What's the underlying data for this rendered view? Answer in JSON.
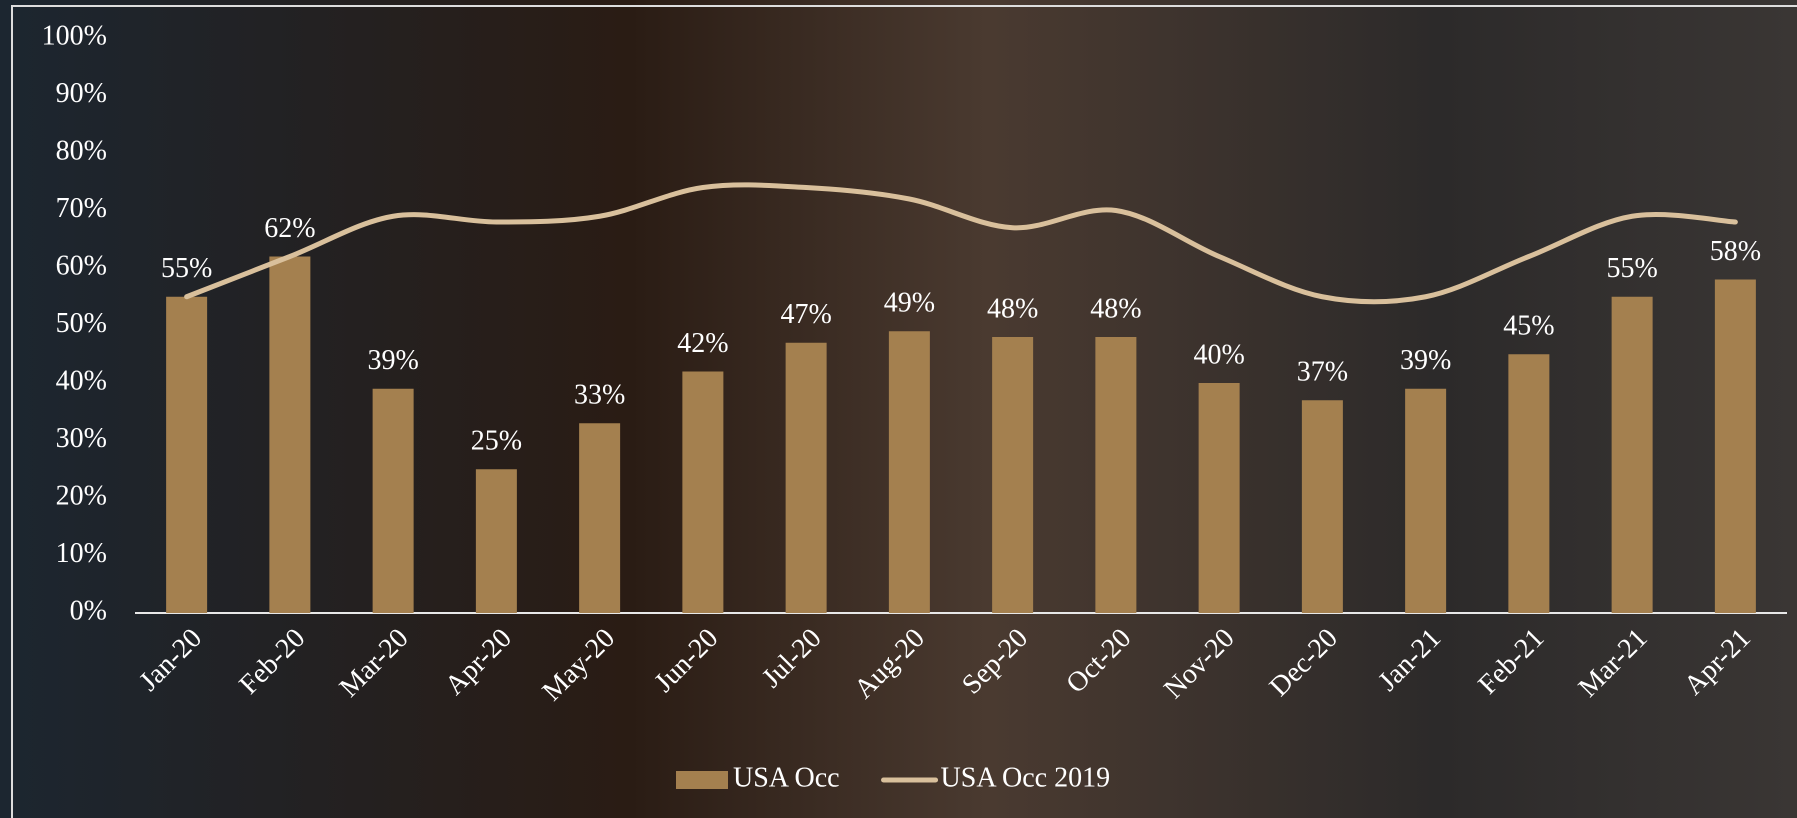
{
  "chart_data": {
    "type": "bar_line",
    "categories": [
      "Jan-20",
      "Feb-20",
      "Mar-20",
      "Apr-20",
      "May-20",
      "Jun-20",
      "Jul-20",
      "Aug-20",
      "Sep-20",
      "Oct-20",
      "Nov-20",
      "Dec-20",
      "Jan-21",
      "Feb-21",
      "Mar-21",
      "Apr-21"
    ],
    "series": [
      {
        "name": "USA Occ",
        "type": "bar",
        "color": "#a4804f",
        "values": [
          55,
          62,
          39,
          25,
          33,
          42,
          47,
          49,
          48,
          48,
          40,
          37,
          39,
          45,
          55,
          58
        ],
        "value_labels": [
          "55%",
          "62%",
          "39%",
          "25%",
          "33%",
          "42%",
          "47%",
          "49%",
          "48%",
          "48%",
          "40%",
          "37%",
          "39%",
          "45%",
          "55%",
          "58%"
        ]
      },
      {
        "name": "USA Occ 2019",
        "type": "line",
        "color": "#d9c09c",
        "values": [
          55,
          62,
          69,
          68,
          69,
          74,
          74,
          72,
          67,
          70,
          62,
          55,
          55,
          62,
          69,
          68
        ]
      }
    ],
    "ylim": [
      0,
      100
    ],
    "yticks": [
      {
        "value": 0,
        "label": "0%"
      },
      {
        "value": 10,
        "label": "10%"
      },
      {
        "value": 20,
        "label": "20%"
      },
      {
        "value": 30,
        "label": "30%"
      },
      {
        "value": 40,
        "label": "40%"
      },
      {
        "value": 50,
        "label": "50%"
      },
      {
        "value": 60,
        "label": "60%"
      },
      {
        "value": 70,
        "label": "70%"
      },
      {
        "value": 80,
        "label": "80%"
      },
      {
        "value": 90,
        "label": "90%"
      },
      {
        "value": 100,
        "label": "100%"
      }
    ],
    "legend": "bottom"
  }
}
